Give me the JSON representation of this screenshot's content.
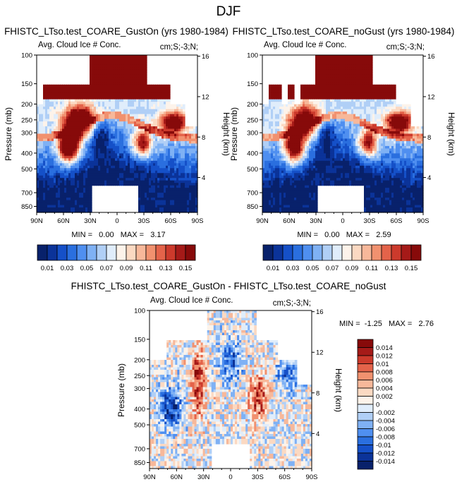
{
  "page_title": "DJF",
  "colors": {
    "ramp": [
      "#08216b",
      "#0b3399",
      "#1550c8",
      "#2a6fdf",
      "#4f8ff0",
      "#7fb1f4",
      "#b0cff6",
      "#e0edfb",
      "#fdf3ea",
      "#fbd9c2",
      "#f7b89a",
      "#f1916f",
      "#e4634a",
      "#cc3a2c",
      "#a51a18",
      "#870a0a"
    ],
    "missing": "#ffffff"
  },
  "chart_data": [
    {
      "type": "heatmap",
      "panel": "GustOn",
      "title": "FHISTC_LTso.test_COARE_GustOn (yrs 1980-1984)",
      "left_label": "Avg. Cloud Ice # Conc.",
      "right_label": "cm;S;-3;N;",
      "ylabel": "Pressure (mb)",
      "ylabel_right": "Height (km)",
      "x_ticks": [
        "90N",
        "60N",
        "30N",
        "0",
        "30S",
        "60S",
        "90S"
      ],
      "y_ticks": [
        "100",
        "150",
        "200",
        "250",
        "300",
        "400",
        "500",
        "700",
        "850"
      ],
      "height_ticks": [
        "16",
        "12",
        "8",
        "4"
      ],
      "min_max_text": "MIN =   0.00   MAX =   3.17",
      "min": 0.0,
      "max": 3.17
    },
    {
      "type": "heatmap",
      "panel": "noGust",
      "title": "FHISTC_LTso.test_COARE_noGust (yrs 1980-1984)",
      "left_label": "Avg. Cloud Ice # Conc.",
      "right_label": "cm;S;-3;N;",
      "ylabel": "Pressure (mb)",
      "ylabel_right": "Height (km)",
      "x_ticks": [
        "90N",
        "60N",
        "30N",
        "0",
        "30S",
        "60S",
        "90S"
      ],
      "y_ticks": [
        "100",
        "150",
        "200",
        "250",
        "300",
        "400",
        "500",
        "700",
        "850"
      ],
      "height_ticks": [
        "16",
        "12",
        "8",
        "4"
      ],
      "min_max_text": "MIN =   0.00   MAX =   2.59",
      "min": 0.0,
      "max": 2.59
    },
    {
      "type": "heatmap",
      "panel": "difference",
      "title": "FHISTC_LTso.test_COARE_GustOn - FHISTC_LTso.test_COARE_noGust",
      "left_label": "Avg. Cloud Ice # Conc.",
      "right_label": "cm;S;-3;N;",
      "ylabel": "Pressure (mb)",
      "ylabel_right": "Height (km)",
      "x_ticks": [
        "90N",
        "60N",
        "30N",
        "0",
        "30S",
        "60S",
        "90S"
      ],
      "y_ticks": [
        "100",
        "150",
        "200",
        "250",
        "300",
        "400",
        "500",
        "700",
        "850"
      ],
      "height_ticks": [
        "16",
        "12",
        "8",
        "4"
      ],
      "min_max_text": "MIN =  -1.25   MAX =   2.76",
      "min": -1.25,
      "max": 2.76
    }
  ],
  "colorbar_abs": {
    "labels": [
      "0.01",
      "0.03",
      "0.05",
      "0.07",
      "0.09",
      "0.11",
      "0.13",
      "0.15"
    ]
  },
  "colorbar_diff": {
    "labels": [
      "0.014",
      "0.012",
      "0.01",
      "0.008",
      "0.006",
      "0.004",
      "0.002",
      "0",
      "-0.002",
      "-0.004",
      "-0.006",
      "-0.008",
      "-0.01",
      "-0.012",
      "-0.014"
    ]
  }
}
